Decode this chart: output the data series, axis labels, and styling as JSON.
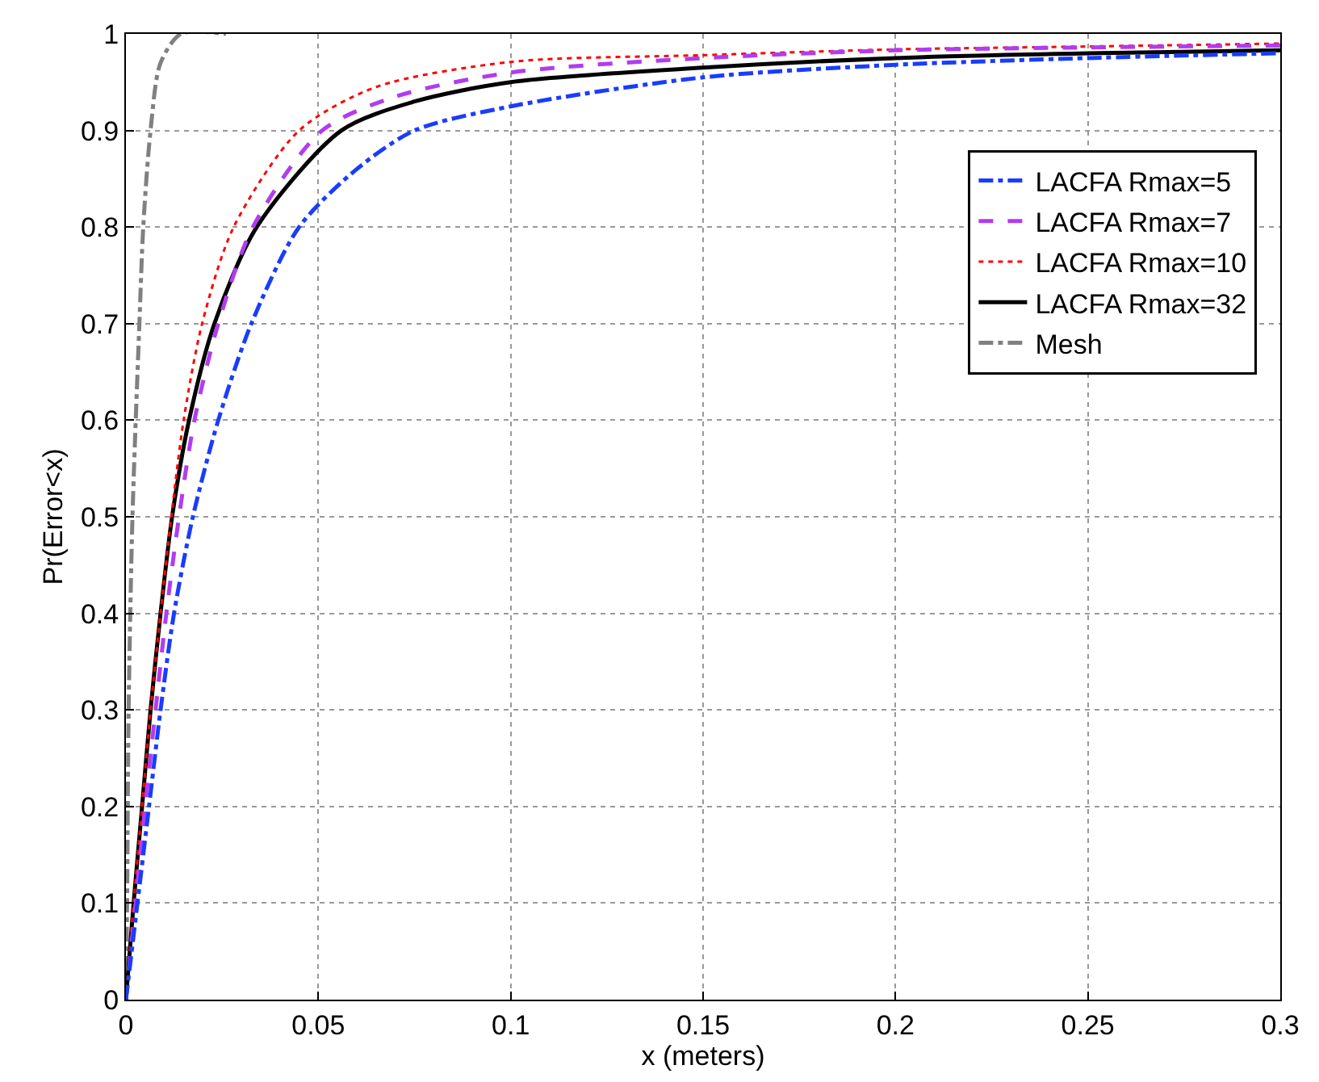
{
  "chart_data": {
    "type": "line",
    "xlabel": "x (meters)",
    "ylabel": "Pr(Error<x)",
    "xlim": [
      0,
      0.3
    ],
    "ylim": [
      0,
      1
    ],
    "xticks": [
      0,
      0.05,
      0.1,
      0.15,
      0.2,
      0.25,
      0.3
    ],
    "yticks": [
      0,
      0.1,
      0.2,
      0.3,
      0.4,
      0.5,
      0.6,
      0.7,
      0.8,
      0.9,
      1
    ],
    "grid": true,
    "legend": "top right",
    "marker": "none",
    "series": [
      {
        "name": "LACFA Rmax=5",
        "color": "#1a3cff",
        "line_style": "dashdot",
        "x": [
          0,
          0.003,
          0.006,
          0.009,
          0.0125,
          0.0174,
          0.024,
          0.0326,
          0.045,
          0.06,
          0.075,
          0.1,
          0.15,
          0.2,
          0.25,
          0.3
        ],
        "values": [
          0,
          0.1,
          0.2,
          0.3,
          0.4,
          0.5,
          0.6,
          0.7,
          0.8,
          0.86,
          0.9,
          0.925,
          0.955,
          0.968,
          0.975,
          0.98
        ]
      },
      {
        "name": "LACFA Rmax=7",
        "color": "#b13cf0",
        "line_style": "dashed",
        "x": [
          0,
          0.0025,
          0.005,
          0.0077,
          0.0105,
          0.0138,
          0.0178,
          0.024,
          0.033,
          0.051,
          0.07,
          0.1,
          0.15,
          0.2,
          0.25,
          0.3
        ],
        "values": [
          0,
          0.1,
          0.2,
          0.3,
          0.4,
          0.5,
          0.6,
          0.7,
          0.8,
          0.9,
          0.935,
          0.96,
          0.975,
          0.983,
          0.986,
          0.988
        ]
      },
      {
        "name": "LACFA Rmax=10",
        "color": "#ff0000",
        "line_style": "dotted",
        "x": [
          0,
          0.002,
          0.0042,
          0.0064,
          0.009,
          0.0118,
          0.015,
          0.0198,
          0.028,
          0.045,
          0.065,
          0.1,
          0.15,
          0.2,
          0.25,
          0.3
        ],
        "values": [
          0,
          0.1,
          0.2,
          0.3,
          0.4,
          0.5,
          0.6,
          0.7,
          0.8,
          0.9,
          0.945,
          0.971,
          0.978,
          0.984,
          0.987,
          0.99
        ]
      },
      {
        "name": "LACFA Rmax=32",
        "color": "#000000",
        "line_style": "solid",
        "x": [
          0,
          0.002,
          0.0042,
          0.0064,
          0.009,
          0.012,
          0.0164,
          0.023,
          0.034,
          0.056,
          0.075,
          0.1,
          0.15,
          0.2,
          0.25,
          0.3
        ],
        "values": [
          0,
          0.1,
          0.2,
          0.3,
          0.4,
          0.5,
          0.6,
          0.7,
          0.8,
          0.9,
          0.93,
          0.95,
          0.965,
          0.975,
          0.98,
          0.983
        ]
      },
      {
        "name": "Mesh",
        "color": "#808080",
        "line_style": "dashdot",
        "x": [
          0,
          0.0003,
          0.0007,
          0.0017,
          0.0035,
          0.0045,
          0.0064,
          0.009,
          0.0143,
          0.026
        ],
        "values": [
          0,
          0.1,
          0.3,
          0.5,
          0.7,
          0.8,
          0.9,
          0.97,
          1,
          1
        ]
      }
    ]
  }
}
